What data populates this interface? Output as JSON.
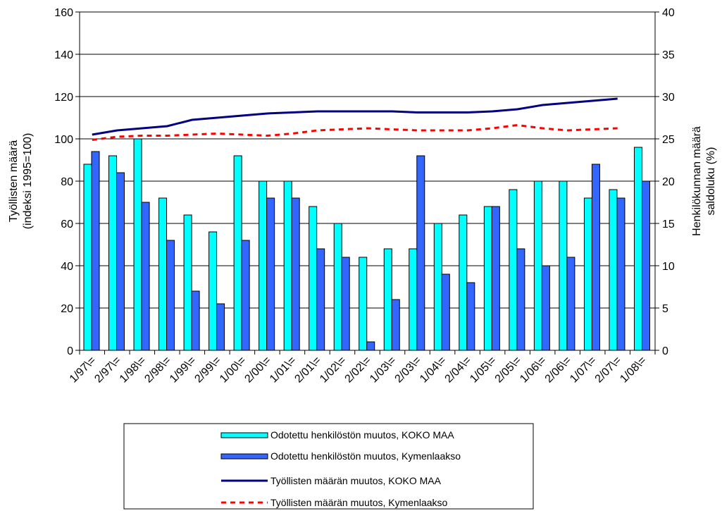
{
  "chart_data": {
    "type": "bar",
    "categories": [
      "1/97\\=",
      "2/97\\=",
      "1/98\\=",
      "2/98\\=",
      "1/99\\=",
      "2/99\\=",
      "1/00\\=",
      "2/00\\=",
      "1/01\\=",
      "2/01\\=",
      "1/02\\=",
      "2/02\\=",
      "1/03\\=",
      "2/03\\=",
      "1/04\\=",
      "2/04\\=",
      "1/05\\=",
      "2/05\\=",
      "1/06\\=",
      "2/06\\=",
      "1/07\\=",
      "2/07\\=",
      "1/08\\="
    ],
    "yaxis_left": {
      "label_line1": "Työllisten määrä",
      "label_line2": "(indeksi 1995=100)",
      "range": [
        0,
        160
      ],
      "ticks": [
        "0",
        "20",
        "40",
        "60",
        "80",
        "100",
        "120",
        "140",
        "160"
      ]
    },
    "yaxis_right": {
      "label_line1": "Henkilökunnan määrä",
      "label_line2": "saldoluku (%)",
      "range": [
        0,
        40
      ],
      "ticks": [
        "0",
        "5",
        "10",
        "15",
        "20",
        "25",
        "30",
        "35",
        "40"
      ]
    },
    "grid": true,
    "legend_position": "bottom",
    "series": [
      {
        "name": "Odotettu henkilöstön muutos, KOKO MAA",
        "kind": "bar",
        "axis": "right",
        "color": "#00ffff",
        "values": [
          22,
          23,
          25,
          18,
          16,
          14,
          23,
          20,
          20,
          17,
          15,
          11,
          12,
          12,
          15,
          16,
          17,
          19,
          20,
          20,
          18,
          19,
          24
        ]
      },
      {
        "name": "Odotettu henkilöstön muutos, Kymenlaakso",
        "kind": "bar",
        "axis": "right",
        "color": "#3366ff",
        "values": [
          23.5,
          21,
          17.5,
          13,
          7,
          5.5,
          13,
          18,
          18,
          12,
          11,
          1,
          6,
          23,
          9,
          8,
          17,
          12,
          10,
          11,
          22,
          18,
          20
        ]
      },
      {
        "name": "Työllisten määrän muutos, KOKO MAA",
        "kind": "line",
        "axis": "left",
        "color": "#000080",
        "values": [
          102,
          104,
          105,
          106,
          109,
          110,
          111,
          112,
          112.5,
          113,
          113,
          113,
          113,
          112.5,
          112.5,
          112.5,
          113,
          114,
          116,
          117,
          118,
          119,
          null
        ]
      },
      {
        "name": "Työllisten määrän muutos, Kymenlaakso",
        "kind": "line",
        "style": "dashed",
        "axis": "left",
        "color": "#ff0000",
        "values": [
          99.5,
          101,
          101.5,
          101.5,
          102,
          102.5,
          102,
          101.5,
          102.5,
          104,
          104.5,
          105,
          104.5,
          104,
          104,
          104,
          105,
          106.5,
          105,
          104,
          104.5,
          105,
          null
        ]
      }
    ]
  }
}
